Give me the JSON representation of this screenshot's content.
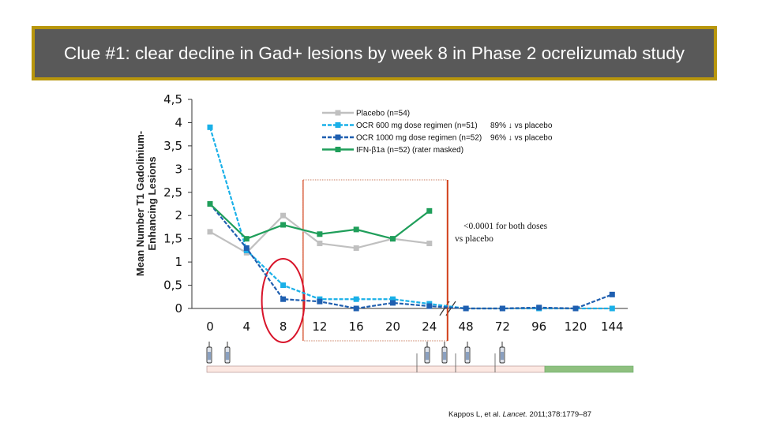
{
  "title": "Clue #1: clear decline in Gad+ lesions by week 8 in Phase 2 ocrelizumab study",
  "citation": {
    "prefix": "Kappos L, et al. ",
    "journal": "Lancet.",
    "rest": " 2011;378:1779–87"
  },
  "chart_data": {
    "type": "line",
    "ylabel_line1": "Mean Number T1 Gadolinium-",
    "ylabel_line2": "Enhancing Lesions",
    "xlabel": "",
    "yticks": [
      "0",
      "0,5",
      "1",
      "1,5",
      "2",
      "2,5",
      "3",
      "3,5",
      "4",
      "4,5"
    ],
    "ylim": [
      0,
      4.5
    ],
    "x_ticks": [
      "0",
      "4",
      "8",
      "12",
      "16",
      "20",
      "24",
      "48",
      "72",
      "96",
      "120",
      "144"
    ],
    "axis_break_after": "24",
    "grid": false,
    "legend_position": "top-right",
    "series": [
      {
        "name": "Placebo (n=54)",
        "color": "#c0c0c0",
        "style": "solid",
        "x": [
          "0",
          "4",
          "8",
          "12",
          "16",
          "20",
          "24"
        ],
        "values": [
          1.65,
          1.2,
          2.0,
          1.4,
          1.3,
          1.5,
          1.4
        ]
      },
      {
        "name": "OCR 600 mg dose regimen (n=51)",
        "color": "#1ab0e8",
        "style": "dashed",
        "note": "89% ↓ vs placebo",
        "x": [
          "0",
          "4",
          "8",
          "12",
          "16",
          "20",
          "24",
          "48",
          "72",
          "96",
          "120",
          "144"
        ],
        "values": [
          3.9,
          1.25,
          0.5,
          0.2,
          0.2,
          0.2,
          0.1,
          0.0,
          0.0,
          0.0,
          0.0,
          0.0
        ]
      },
      {
        "name": "OCR 1000 mg dose regimen (n=52)",
        "color": "#1f5fb0",
        "style": "dashed",
        "note": "96% ↓ vs placebo",
        "x": [
          "0",
          "4",
          "8",
          "12",
          "16",
          "20",
          "24",
          "48",
          "72",
          "96",
          "120",
          "144"
        ],
        "values": [
          2.25,
          1.3,
          0.2,
          0.15,
          0.0,
          0.12,
          0.05,
          0.0,
          0.0,
          0.02,
          0.0,
          0.3
        ]
      },
      {
        "name": "IFN-β1a (n=52)  (rater masked)",
        "color": "#1f9e5a",
        "style": "solid",
        "x": [
          "0",
          "4",
          "8",
          "12",
          "16",
          "20",
          "24"
        ],
        "values": [
          2.25,
          1.5,
          1.8,
          1.6,
          1.7,
          1.5,
          2.1
        ]
      }
    ],
    "annotation": {
      "line1": "<0.0001 for both doses",
      "line2": "vs placebo"
    },
    "highlight": {
      "type": "circle",
      "around_x": "8"
    },
    "highlight_box": {
      "from_x": "12",
      "to_x": "24"
    },
    "timeline": {
      "colors": [
        "#fce8e2",
        "#8fc07f"
      ]
    }
  }
}
